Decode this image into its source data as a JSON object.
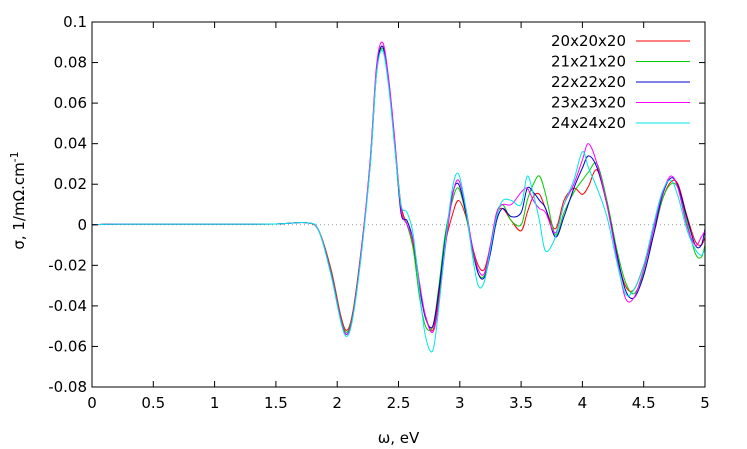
{
  "chart_data": {
    "type": "line",
    "xlabel": "ω, eV",
    "ylabel": "σ, 1/mΩ.cm",
    "ylabel_superscript": "-1",
    "xlim": [
      0,
      5
    ],
    "ylim": [
      -0.08,
      0.1
    ],
    "x_ticks": [
      "0",
      "0.5",
      "1",
      "1.5",
      "2",
      "2.5",
      "3",
      "3.5",
      "4",
      "4.5",
      "5"
    ],
    "y_ticks": [
      "-0.08",
      "-0.06",
      "-0.04",
      "-0.02",
      "0",
      "0.02",
      "0.04",
      "0.06",
      "0.08",
      "0.1"
    ],
    "grid": false,
    "zero_line": "dotted",
    "legend_position": "top-right",
    "series": [
      {
        "name": "20x20x20",
        "color": "#ff0000",
        "x": [
          0,
          0.2,
          0.5,
          1.0,
          1.5,
          1.75,
          1.85,
          1.95,
          2.03,
          2.08,
          2.13,
          2.2,
          2.27,
          2.32,
          2.37,
          2.42,
          2.47,
          2.52,
          2.57,
          2.62,
          2.67,
          2.72,
          2.78,
          2.83,
          2.88,
          2.94,
          2.99,
          3.05,
          3.1,
          3.15,
          3.2,
          3.25,
          3.3,
          3.35,
          3.42,
          3.5,
          3.55,
          3.6,
          3.65,
          3.7,
          3.78,
          3.85,
          3.93,
          4.0,
          4.05,
          4.12,
          4.2,
          4.28,
          4.35,
          4.42,
          4.5,
          4.58,
          4.65,
          4.72,
          4.78,
          4.85,
          4.92,
          4.97,
          5.0
        ],
        "values": [
          0,
          0.0003,
          0.0003,
          0.0003,
          0.0004,
          0.001,
          -0.003,
          -0.022,
          -0.045,
          -0.052,
          -0.042,
          -0.01,
          0.03,
          0.075,
          0.088,
          0.07,
          0.04,
          0.01,
          0.0,
          -0.01,
          -0.03,
          -0.045,
          -0.052,
          -0.035,
          -0.01,
          0.005,
          0.012,
          0.004,
          -0.01,
          -0.02,
          -0.022,
          -0.01,
          0.005,
          0.008,
          0.002,
          -0.003,
          0.006,
          0.014,
          0.015,
          0.008,
          -0.002,
          0.012,
          0.018,
          0.015,
          0.019,
          0.027,
          0.01,
          -0.015,
          -0.03,
          -0.032,
          -0.02,
          -0.005,
          0.012,
          0.021,
          0.02,
          0.005,
          -0.008,
          -0.01,
          -0.006
        ]
      },
      {
        "name": "21x21x20",
        "color": "#00cc00",
        "x": [
          0,
          0.2,
          0.5,
          1.0,
          1.5,
          1.75,
          1.85,
          1.95,
          2.03,
          2.08,
          2.13,
          2.2,
          2.27,
          2.32,
          2.37,
          2.42,
          2.47,
          2.52,
          2.57,
          2.62,
          2.67,
          2.72,
          2.78,
          2.83,
          2.88,
          2.94,
          2.99,
          3.05,
          3.1,
          3.15,
          3.2,
          3.25,
          3.3,
          3.35,
          3.42,
          3.5,
          3.55,
          3.6,
          3.65,
          3.7,
          3.78,
          3.85,
          3.93,
          4.0,
          4.05,
          4.12,
          4.2,
          4.28,
          4.35,
          4.42,
          4.5,
          4.58,
          4.65,
          4.72,
          4.78,
          4.85,
          4.92,
          4.97,
          5.0
        ],
        "values": [
          0,
          0.0003,
          0.0003,
          0.0003,
          0.0004,
          0.001,
          -0.003,
          -0.023,
          -0.046,
          -0.053,
          -0.043,
          -0.011,
          0.03,
          0.074,
          0.087,
          0.07,
          0.038,
          0.008,
          0.0,
          -0.012,
          -0.035,
          -0.05,
          -0.05,
          -0.03,
          -0.005,
          0.012,
          0.018,
          0.005,
          -0.012,
          -0.024,
          -0.025,
          -0.012,
          0.004,
          0.01,
          0.002,
          0.0,
          0.012,
          0.02,
          0.024,
          0.015,
          -0.005,
          0.006,
          0.016,
          0.022,
          0.026,
          0.03,
          0.012,
          -0.012,
          -0.028,
          -0.034,
          -0.024,
          -0.005,
          0.012,
          0.02,
          0.018,
          0.002,
          -0.014,
          -0.016,
          -0.01
        ]
      },
      {
        "name": "22x22x20",
        "color": "#0000cc",
        "x": [
          0,
          0.2,
          0.5,
          1.0,
          1.5,
          1.75,
          1.85,
          1.95,
          2.03,
          2.08,
          2.13,
          2.2,
          2.27,
          2.32,
          2.37,
          2.42,
          2.47,
          2.52,
          2.57,
          2.62,
          2.67,
          2.72,
          2.78,
          2.83,
          2.88,
          2.94,
          2.99,
          3.05,
          3.1,
          3.15,
          3.2,
          3.25,
          3.3,
          3.35,
          3.42,
          3.5,
          3.55,
          3.6,
          3.65,
          3.7,
          3.78,
          3.85,
          3.93,
          4.0,
          4.05,
          4.12,
          4.2,
          4.28,
          4.35,
          4.42,
          4.5,
          4.58,
          4.65,
          4.72,
          4.78,
          4.85,
          4.92,
          4.97,
          5.0
        ],
        "values": [
          0,
          0.0003,
          0.0003,
          0.0003,
          0.0004,
          0.001,
          -0.003,
          -0.024,
          -0.047,
          -0.054,
          -0.044,
          -0.012,
          0.032,
          0.076,
          0.088,
          0.071,
          0.04,
          0.006,
          0.002,
          -0.008,
          -0.03,
          -0.046,
          -0.05,
          -0.032,
          -0.008,
          0.015,
          0.02,
          0.006,
          -0.01,
          -0.024,
          -0.026,
          -0.014,
          0.002,
          0.008,
          0.004,
          0.006,
          0.018,
          0.016,
          0.012,
          0.008,
          -0.006,
          0.004,
          0.018,
          0.028,
          0.034,
          0.028,
          0.01,
          -0.014,
          -0.032,
          -0.036,
          -0.025,
          -0.005,
          0.014,
          0.023,
          0.019,
          0.004,
          -0.01,
          -0.01,
          -0.002
        ]
      },
      {
        "name": "23x23x20",
        "color": "#ff00ff",
        "x": [
          0,
          0.2,
          0.5,
          1.0,
          1.5,
          1.75,
          1.85,
          1.95,
          2.03,
          2.08,
          2.13,
          2.2,
          2.27,
          2.32,
          2.37,
          2.42,
          2.47,
          2.52,
          2.57,
          2.62,
          2.67,
          2.72,
          2.78,
          2.83,
          2.88,
          2.94,
          2.99,
          3.05,
          3.1,
          3.15,
          3.2,
          3.25,
          3.3,
          3.35,
          3.42,
          3.5,
          3.55,
          3.6,
          3.65,
          3.7,
          3.78,
          3.85,
          3.93,
          4.0,
          4.05,
          4.12,
          4.2,
          4.28,
          4.35,
          4.42,
          4.5,
          4.58,
          4.65,
          4.72,
          4.78,
          4.85,
          4.92,
          4.97,
          5.0
        ],
        "values": [
          0,
          0.0003,
          0.0003,
          0.0003,
          0.0004,
          0.001,
          -0.003,
          -0.024,
          -0.047,
          -0.054,
          -0.044,
          -0.011,
          0.033,
          0.078,
          0.09,
          0.072,
          0.042,
          0.008,
          0.0,
          -0.008,
          -0.028,
          -0.045,
          -0.053,
          -0.038,
          -0.012,
          0.014,
          0.022,
          0.008,
          -0.01,
          -0.022,
          -0.024,
          -0.01,
          0.006,
          0.01,
          0.01,
          0.016,
          0.018,
          0.012,
          0.008,
          0.006,
          -0.004,
          0.01,
          0.02,
          0.032,
          0.04,
          0.03,
          0.01,
          -0.016,
          -0.036,
          -0.036,
          -0.022,
          -0.002,
          0.015,
          0.024,
          0.018,
          0.0,
          -0.01,
          -0.006,
          -0.003
        ]
      },
      {
        "name": "24x24x20",
        "color": "#00e5e5",
        "x": [
          0,
          0.2,
          0.5,
          1.0,
          1.5,
          1.75,
          1.85,
          1.95,
          2.03,
          2.08,
          2.13,
          2.2,
          2.27,
          2.32,
          2.37,
          2.42,
          2.47,
          2.52,
          2.57,
          2.62,
          2.67,
          2.72,
          2.78,
          2.83,
          2.88,
          2.94,
          2.99,
          3.05,
          3.1,
          3.15,
          3.2,
          3.25,
          3.3,
          3.35,
          3.42,
          3.5,
          3.55,
          3.6,
          3.65,
          3.7,
          3.78,
          3.85,
          3.93,
          4.0,
          4.05,
          4.12,
          4.2,
          4.28,
          4.35,
          4.42,
          4.5,
          4.58,
          4.65,
          4.72,
          4.78,
          4.85,
          4.92,
          4.97,
          5.0
        ],
        "values": [
          0,
          0.0003,
          0.0003,
          0.0003,
          0.0004,
          0.001,
          -0.003,
          -0.025,
          -0.048,
          -0.055,
          -0.045,
          -0.013,
          0.03,
          0.074,
          0.086,
          0.068,
          0.038,
          0.01,
          0.006,
          -0.005,
          -0.032,
          -0.055,
          -0.062,
          -0.04,
          -0.01,
          0.018,
          0.025,
          0.008,
          -0.014,
          -0.03,
          -0.028,
          -0.012,
          0.004,
          0.012,
          0.012,
          0.01,
          0.024,
          0.015,
          0.002,
          -0.013,
          -0.006,
          0.01,
          0.022,
          0.036,
          0.028,
          0.018,
          0.004,
          -0.018,
          -0.034,
          -0.032,
          -0.02,
          0.0,
          0.016,
          0.022,
          0.014,
          -0.002,
          -0.012,
          -0.015,
          -0.012
        ]
      }
    ]
  }
}
